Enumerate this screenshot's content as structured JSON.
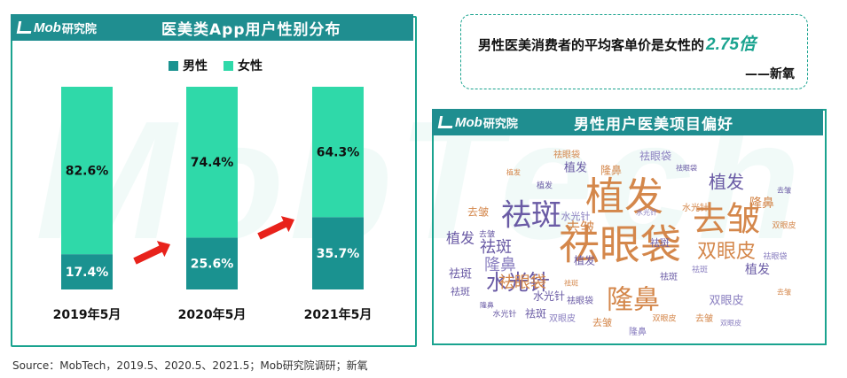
{
  "watermark_text": "MobTech",
  "logo": {
    "latin": "Mob",
    "cn": "研究院"
  },
  "left_panel": {
    "title": "医美类App用户性别分布"
  },
  "right_panel": {
    "title": "男性用户医美项目偏好"
  },
  "quote": {
    "text": "男性医美消费者的平均客单价是女性的",
    "highlight": "2.75倍",
    "author": "——新氧"
  },
  "source": "Source：MobTech，2019.5、2020.5、2021.5；Mob研究院调研；新氧",
  "colors": {
    "male": "#1a9290",
    "female": "#2fd9a9",
    "accent": "#1aa38f",
    "arrow": "#e8221b"
  },
  "chart_data": {
    "type": "bar",
    "stacked": true,
    "unit": "%",
    "categories": [
      "2019年5月",
      "2020年5月",
      "2021年5月"
    ],
    "series": [
      {
        "name": "男性",
        "values": [
          17.4,
          25.6,
          35.7
        ]
      },
      {
        "name": "女性",
        "values": [
          82.6,
          74.4,
          64.3
        ]
      }
    ],
    "value_labels": {
      "男性": [
        "17.4%",
        "25.6%",
        "35.7%"
      ],
      "女性": [
        "82.6%",
        "74.4%",
        "64.3%"
      ]
    },
    "legend_position": "top",
    "grid": false
  },
  "word_cloud": [
    {
      "text": "祛眼袋",
      "size": 46,
      "color": "#d4874b"
    },
    {
      "text": "植发",
      "size": 44,
      "color": "#d4874b"
    },
    {
      "text": "去皱",
      "size": 38,
      "color": "#d4874b"
    },
    {
      "text": "祛斑",
      "size": 34,
      "color": "#6a5ba5"
    },
    {
      "text": "隆鼻",
      "size": 30,
      "color": "#d4874b"
    },
    {
      "text": "水光针",
      "size": 24,
      "color": "#6a5ba5"
    },
    {
      "text": "双眼皮",
      "size": 22,
      "color": "#d4874b"
    },
    {
      "text": "植发",
      "size": 20,
      "color": "#6a5ba5"
    },
    {
      "text": "祛眼袋",
      "size": 18,
      "color": "#d4874b"
    },
    {
      "text": "隆鼻",
      "size": 18,
      "color": "#8a7fc0"
    },
    {
      "text": "祛斑",
      "size": 18,
      "color": "#6a5ba5"
    },
    {
      "text": "植发",
      "size": 16,
      "color": "#6a5ba5"
    },
    {
      "text": "去皱",
      "size": 16,
      "color": "#d4874b"
    },
    {
      "text": "植发",
      "size": 14,
      "color": "#6a5ba5"
    },
    {
      "text": "隆鼻",
      "size": 14,
      "color": "#d4874b"
    },
    {
      "text": "祛斑",
      "size": 13,
      "color": "#6a5ba5"
    },
    {
      "text": "植发",
      "size": 13,
      "color": "#6a5ba5"
    },
    {
      "text": "双眼皮",
      "size": 13,
      "color": "#8a7fc0"
    },
    {
      "text": "去皱",
      "size": 12,
      "color": "#d4874b"
    },
    {
      "text": "水光针",
      "size": 12,
      "color": "#6a5ba5"
    },
    {
      "text": "祛眼袋",
      "size": 12,
      "color": "#8a7fc0"
    },
    {
      "text": "祛斑",
      "size": 12,
      "color": "#6a5ba5"
    },
    {
      "text": "隆鼻",
      "size": 12,
      "color": "#d4874b"
    },
    {
      "text": "植发",
      "size": 12,
      "color": "#6a5ba5"
    },
    {
      "text": "去皱",
      "size": 11,
      "color": "#d4874b"
    },
    {
      "text": "祛斑",
      "size": 11,
      "color": "#6a5ba5"
    },
    {
      "text": "水光针",
      "size": 11,
      "color": "#8a7fc0"
    },
    {
      "text": "祛斑",
      "size": 11,
      "color": "#6a5ba5"
    },
    {
      "text": "祛眼袋",
      "size": 10,
      "color": "#d4874b"
    },
    {
      "text": "祛眼袋",
      "size": 10,
      "color": "#6a5ba5"
    },
    {
      "text": "水光针",
      "size": 10,
      "color": "#d4874b"
    },
    {
      "text": "双眼皮",
      "size": 10,
      "color": "#8a7fc0"
    },
    {
      "text": "祛斑",
      "size": 10,
      "color": "#6a5ba5"
    },
    {
      "text": "去皱",
      "size": 10,
      "color": "#d4874b"
    },
    {
      "text": "隆鼻",
      "size": 10,
      "color": "#8a7fc0"
    },
    {
      "text": "双眼皮",
      "size": 9,
      "color": "#d4874b"
    },
    {
      "text": "水光针",
      "size": 9,
      "color": "#6a5ba5"
    },
    {
      "text": "祛眼袋",
      "size": 9,
      "color": "#8a7fc0"
    },
    {
      "text": "植发",
      "size": 9,
      "color": "#6a5ba5"
    },
    {
      "text": "双眼皮",
      "size": 9,
      "color": "#d4874b"
    },
    {
      "text": "去皱",
      "size": 9,
      "color": "#6a5ba5"
    },
    {
      "text": "祛斑",
      "size": 9,
      "color": "#8a7fc0"
    },
    {
      "text": "去皱",
      "size": 8,
      "color": "#d4874b"
    },
    {
      "text": "隆鼻",
      "size": 8,
      "color": "#6a5ba5"
    },
    {
      "text": "水光针",
      "size": 8,
      "color": "#8a7fc0"
    },
    {
      "text": "植发",
      "size": 8,
      "color": "#d4874b"
    },
    {
      "text": "祛眼袋",
      "size": 8,
      "color": "#6a5ba5"
    },
    {
      "text": "双眼皮",
      "size": 8,
      "color": "#8a7fc0"
    },
    {
      "text": "祛斑",
      "size": 8,
      "color": "#d4874b"
    },
    {
      "text": "去皱",
      "size": 8,
      "color": "#6a5ba5"
    }
  ]
}
